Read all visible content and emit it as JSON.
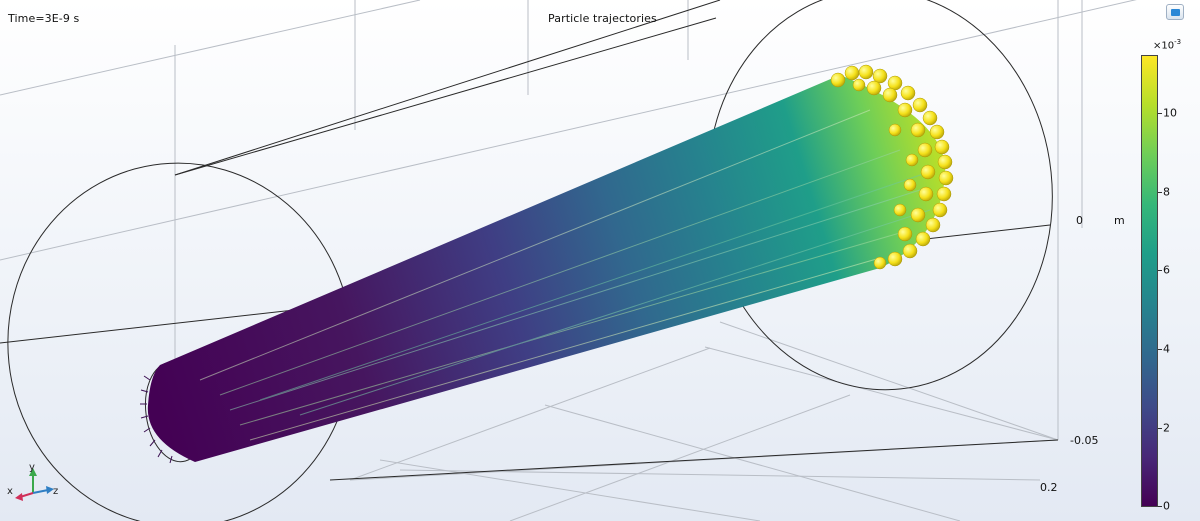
{
  "viewport": {
    "time_label": "Time=3E-9 s",
    "title": "Particle trajectories"
  },
  "axes": {
    "tick_y_zero": "0",
    "unit": "m",
    "tick_y_neg": "-0.05",
    "tick_z": "0.2"
  },
  "colorbar": {
    "exponent_base": "×10",
    "exponent_power": "-3",
    "ticks": [
      "0",
      "2",
      "4",
      "6",
      "8",
      "10"
    ],
    "colormap": "viridis",
    "colors": [
      "#440154",
      "#482878",
      "#3e4a89",
      "#31688e",
      "#26828e",
      "#1f9e89",
      "#35b779",
      "#6ece58",
      "#b5de2b",
      "#fde725"
    ]
  },
  "triad": {
    "x": "x",
    "y": "y",
    "z": "z"
  },
  "icons": {
    "corner_button": "view-toggle-icon"
  }
}
